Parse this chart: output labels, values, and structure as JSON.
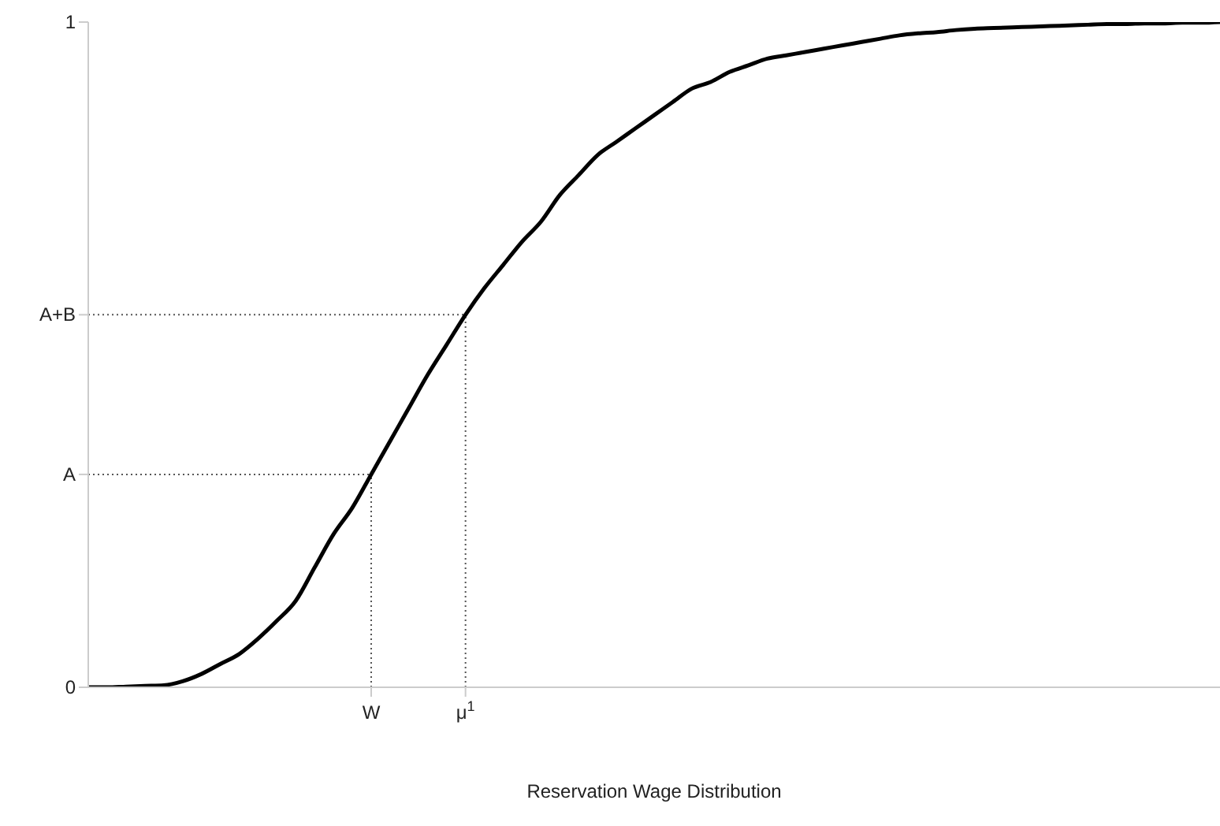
{
  "chart_data": {
    "type": "line",
    "xlabel": "Reservation Wage Distribution",
    "categories": [
      null,
      null,
      null,
      null,
      null,
      null,
      null,
      null,
      null,
      null,
      null,
      null,
      null,
      null,
      null,
      "W",
      null,
      null,
      null,
      null,
      "μ$^{1}$",
      null,
      null,
      null,
      null,
      null,
      null,
      null,
      null,
      null,
      null,
      null,
      null,
      null,
      null,
      null,
      null,
      null,
      null,
      null,
      null,
      null,
      null,
      null,
      null,
      null,
      null,
      null,
      null,
      null,
      null,
      null,
      null,
      null,
      null,
      null,
      null,
      null,
      null,
      null,
      null
    ],
    "ylim": [
      0,
      1
    ],
    "yticks": [
      0,
      {
        "value": 0.32,
        "label": "A"
      },
      {
        "value": 0.56,
        "label": "A+B"
      },
      1
    ],
    "marker": "none",
    "line_style": "solid",
    "ref_lines": [
      {
        "axis": "y",
        "value": 0.32,
        "color": "#555555",
        "line_style": "dotted"
      },
      {
        "axis": "y",
        "value": 0.56,
        "color": "#555555",
        "line_style": "dotted"
      },
      {
        "axis": "x",
        "value": "W",
        "color": "#555555",
        "line_style": "dotted"
      },
      {
        "axis": "x",
        "value": "μ$^{1}$",
        "color": "#555555",
        "line_style": "dotted"
      }
    ],
    "series": [
      {
        "color": "#000000",
        "values": [
          0,
          0,
          0.001,
          0.002,
          0.003,
          0.009,
          0.02,
          0.035,
          0.05,
          0.073,
          0.1,
          0.13,
          0.18,
          0.23,
          0.27,
          0.32,
          0.37,
          0.42,
          0.47,
          0.515,
          0.56,
          0.6,
          0.635,
          0.67,
          0.7,
          0.74,
          0.77,
          0.8,
          0.82,
          0.84,
          0.86,
          0.88,
          0.9,
          0.91,
          0.925,
          0.935,
          0.945,
          0.95,
          0.955,
          0.96,
          0.965,
          0.97,
          0.975,
          0.98,
          0.983,
          0.985,
          0.988,
          0.99,
          0.991,
          0.992,
          0.993,
          0.994,
          0.995,
          0.996,
          0.997,
          0.997,
          0.998,
          0.998,
          0.999,
          0.999,
          1
        ]
      }
    ]
  }
}
